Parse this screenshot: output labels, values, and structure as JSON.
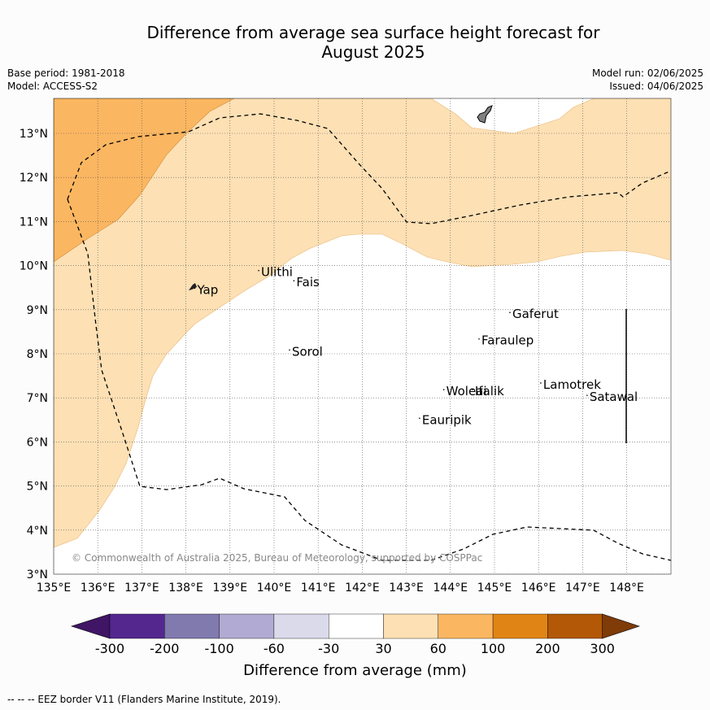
{
  "title": {
    "line1": "Difference from average sea surface height forecast for",
    "line2": "August 2025"
  },
  "meta": {
    "base_period": "Base period: 1981-2018",
    "model": "Model: ACCESS-S2",
    "model_run": "Model run: 02/06/2025",
    "issued": "Issued: 04/06/2025"
  },
  "map": {
    "lon_range": [
      135,
      149
    ],
    "lat_range": [
      3,
      13.8
    ],
    "lon_ticks": [
      "135°E",
      "136°E",
      "137°E",
      "138°E",
      "139°E",
      "140°E",
      "141°E",
      "142°E",
      "143°E",
      "144°E",
      "145°E",
      "146°E",
      "147°E",
      "148°E"
    ],
    "lat_ticks": [
      "3°N",
      "4°N",
      "5°N",
      "6°N",
      "7°N",
      "8°N",
      "9°N",
      "10°N",
      "11°N",
      "12°N",
      "13°N"
    ],
    "grid": true,
    "copyright": "© Commonwealth of Australia 2025, Bureau of Meteorology, supported by COSPPac",
    "places": [
      {
        "name": "Yap",
        "lon": 138.2,
        "lat": 9.45
      },
      {
        "name": "Ulithi",
        "lon": 139.65,
        "lat": 9.85
      },
      {
        "name": "Fais",
        "lon": 140.45,
        "lat": 9.62
      },
      {
        "name": "Gaferut",
        "lon": 145.35,
        "lat": 8.9
      },
      {
        "name": "Faraulep",
        "lon": 144.65,
        "lat": 8.3
      },
      {
        "name": "Sorol",
        "lon": 140.35,
        "lat": 8.05
      },
      {
        "name": "Lamotrek",
        "lon": 146.05,
        "lat": 7.3
      },
      {
        "name": "Woleai",
        "lon": 143.85,
        "lat": 7.15
      },
      {
        "name": "Ifalik",
        "lon": 144.5,
        "lat": 7.15
      },
      {
        "name": "Satawal",
        "lon": 147.1,
        "lat": 7.02
      },
      {
        "name": "Eauripik",
        "lon": 143.3,
        "lat": 6.5
      }
    ],
    "colors": {
      "band_30_60": "#fde0b4",
      "band_60_100": "#fbb661",
      "land": "#808080"
    }
  },
  "colorbar": {
    "ticks": [
      "-300",
      "-200",
      "-100",
      "-60",
      "-30",
      "30",
      "60",
      "100",
      "200",
      "300"
    ],
    "colors": [
      "#401565",
      "#54278f",
      "#807aaf",
      "#b1aad3",
      "#dadaeb",
      "#ffffff",
      "#fde0b4",
      "#fbb661",
      "#e08515",
      "#b35806",
      "#7f3b08"
    ],
    "label": "Difference from average (mm)"
  },
  "footer": "--  --  -- EEZ border V11 (Flanders Marine Institute, 2019)."
}
